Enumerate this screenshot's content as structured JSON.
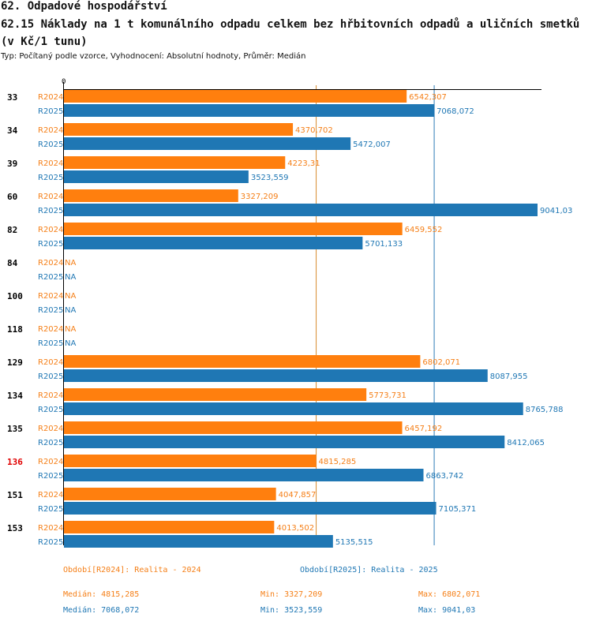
{
  "header": {
    "title": "62. Odpadové hospodářství",
    "subtitle": "62.15 Náklady na 1 t komunálního odpadu celkem bez hřbitovních odpadů a uličních smetků (v Kč/1 tunu)",
    "meta": "Typ: Počítaný podle vzorce, Vyhodnocení: Absolutní hodnoty, Průměr: Medián"
  },
  "colors": {
    "r2024": "#ff7f0e",
    "r2025": "#1f77b4",
    "highlight": "#e00000",
    "text2024": "#f57f17",
    "text2025": "#1f77b4"
  },
  "chart_data": {
    "type": "bar",
    "orientation": "horizontal",
    "xlim": [
      0,
      9041.03
    ],
    "axis_zero_label": "0",
    "reference_lines": {
      "r2024_median": 4815.285,
      "r2025_median": 7068.072
    },
    "categories": [
      "33",
      "34",
      "39",
      "60",
      "82",
      "84",
      "100",
      "118",
      "129",
      "134",
      "135",
      "136",
      "151",
      "153"
    ],
    "highlight_category": "136",
    "series": [
      {
        "name": "R2024",
        "values": [
          6542.307,
          4370.702,
          4223.31,
          3327.209,
          6459.552,
          null,
          null,
          null,
          6802.071,
          5773.731,
          6457.192,
          4815.285,
          4047.857,
          4013.502
        ],
        "labels": [
          "6542,307",
          "4370,702",
          "4223,31",
          "3327,209",
          "6459,552",
          "NA",
          "NA",
          "NA",
          "6802,071",
          "5773,731",
          "6457,192",
          "4815,285",
          "4047,857",
          "4013,502"
        ]
      },
      {
        "name": "R2025",
        "values": [
          7068.072,
          5472.007,
          3523.559,
          9041.03,
          5701.133,
          null,
          null,
          null,
          8087.955,
          8765.788,
          8412.065,
          6863.742,
          7105.371,
          5135.515
        ],
        "labels": [
          "7068,072",
          "5472,007",
          "3523,559",
          "9041,03",
          "5701,133",
          "NA",
          "NA",
          "NA",
          "8087,955",
          "8765,788",
          "8412,065",
          "6863,742",
          "7105,371",
          "5135,515"
        ]
      }
    ]
  },
  "legend": {
    "r2024": "Období[R2024]: Realita - 2024",
    "r2025": "Období[R2025]: Realita - 2025"
  },
  "stats": {
    "r2024": {
      "median": "Medián: 4815,285",
      "min": "Min: 3327,209",
      "max": "Max: 6802,071"
    },
    "r2025": {
      "median": "Medián: 7068,072",
      "min": "Min: 3523,559",
      "max": "Max: 9041,03"
    }
  }
}
